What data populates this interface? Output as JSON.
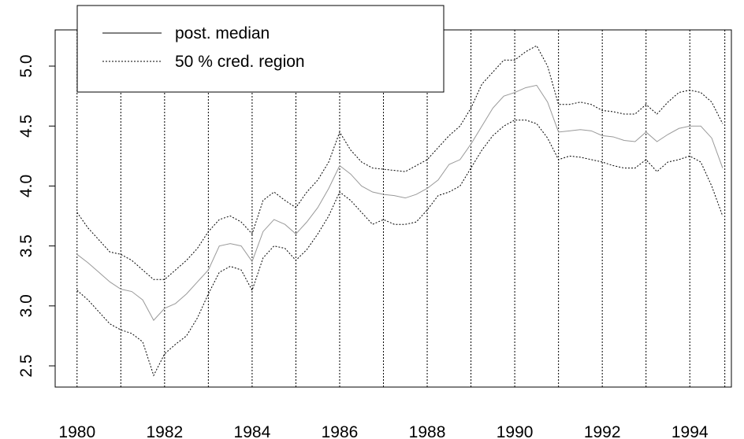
{
  "chart_data": {
    "type": "line",
    "x": [
      1980,
      1980.25,
      1980.5,
      1980.75,
      1981,
      1981.25,
      1981.5,
      1981.75,
      1982,
      1982.25,
      1982.5,
      1982.75,
      1983,
      1983.25,
      1983.5,
      1983.75,
      1984,
      1984.25,
      1984.5,
      1984.75,
      1985,
      1985.25,
      1985.5,
      1985.75,
      1986,
      1986.25,
      1986.5,
      1986.75,
      1987,
      1987.25,
      1987.5,
      1987.75,
      1988,
      1988.25,
      1988.5,
      1988.75,
      1989,
      1989.25,
      1989.5,
      1989.75,
      1990,
      1990.25,
      1990.5,
      1990.75,
      1991,
      1991.25,
      1991.5,
      1991.75,
      1992,
      1992.25,
      1992.5,
      1992.75,
      1993,
      1993.25,
      1993.5,
      1993.75,
      1994,
      1994.25,
      1994.5,
      1994.75
    ],
    "series": [
      {
        "name": "post. median",
        "color": "#999999",
        "dash": "solid",
        "values": [
          3.43,
          3.36,
          3.28,
          3.2,
          3.14,
          3.12,
          3.05,
          2.88,
          2.98,
          3.02,
          3.1,
          3.2,
          3.3,
          3.5,
          3.52,
          3.5,
          3.37,
          3.62,
          3.72,
          3.68,
          3.6,
          3.7,
          3.82,
          3.98,
          4.17,
          4.1,
          4.0,
          3.95,
          3.93,
          3.92,
          3.9,
          3.93,
          3.98,
          4.05,
          4.18,
          4.22,
          4.35,
          4.5,
          4.65,
          4.75,
          4.78,
          4.82,
          4.84,
          4.7,
          4.45,
          4.46,
          4.47,
          4.46,
          4.42,
          4.41,
          4.38,
          4.37,
          4.45,
          4.37,
          4.43,
          4.48,
          4.5,
          4.5,
          4.4,
          4.15
        ]
      },
      {
        "name": "50 % cred. region",
        "color": "#000000",
        "dash": "dotted",
        "values": [
          3.78,
          3.65,
          3.55,
          3.45,
          3.43,
          3.38,
          3.3,
          3.22,
          3.22,
          3.3,
          3.38,
          3.48,
          3.62,
          3.72,
          3.75,
          3.7,
          3.6,
          3.88,
          3.95,
          3.88,
          3.82,
          3.95,
          4.05,
          4.2,
          4.45,
          4.3,
          4.2,
          4.15,
          4.14,
          4.13,
          4.12,
          4.17,
          4.22,
          4.32,
          4.42,
          4.5,
          4.65,
          4.85,
          4.95,
          5.05,
          5.05,
          5.12,
          5.17,
          5.0,
          4.68,
          4.68,
          4.7,
          4.68,
          4.63,
          4.62,
          4.6,
          4.6,
          4.68,
          4.6,
          4.7,
          4.78,
          4.8,
          4.78,
          4.7,
          4.52
        ]
      },
      {
        "color": "#000000",
        "dash": "dotted",
        "values": [
          3.13,
          3.05,
          2.95,
          2.85,
          2.8,
          2.77,
          2.7,
          2.42,
          2.6,
          2.68,
          2.75,
          2.9,
          3.1,
          3.28,
          3.33,
          3.3,
          3.13,
          3.4,
          3.5,
          3.48,
          3.38,
          3.47,
          3.6,
          3.75,
          3.95,
          3.88,
          3.78,
          3.68,
          3.72,
          3.68,
          3.68,
          3.7,
          3.8,
          3.92,
          3.95,
          4.0,
          4.15,
          4.3,
          4.42,
          4.5,
          4.55,
          4.55,
          4.52,
          4.4,
          4.22,
          4.25,
          4.24,
          4.22,
          4.2,
          4.17,
          4.15,
          4.15,
          4.22,
          4.12,
          4.2,
          4.22,
          4.25,
          4.2,
          4.0,
          3.75
        ]
      }
    ],
    "xlim": [
      1979.5,
      1994.95
    ],
    "ylim": [
      2.323,
      5.302
    ],
    "xticks": [
      1980,
      1982,
      1984,
      1986,
      1988,
      1990,
      1992,
      1994
    ],
    "yticks": [
      {
        "value": 2.5,
        "label": "2.5"
      },
      {
        "value": 3,
        "label": "3.0"
      },
      {
        "value": 3.5,
        "label": "3.5"
      },
      {
        "value": 4,
        "label": "4.0"
      },
      {
        "value": 4.5,
        "label": "4.5"
      },
      {
        "value": 5,
        "label": "5.0"
      }
    ],
    "vlines": [
      1980,
      1981,
      1982,
      1983,
      1984,
      1985,
      1986,
      1987,
      1988,
      1989,
      1990,
      1991,
      1992,
      1993,
      1994,
      1994.8
    ],
    "legend": "top-left"
  }
}
